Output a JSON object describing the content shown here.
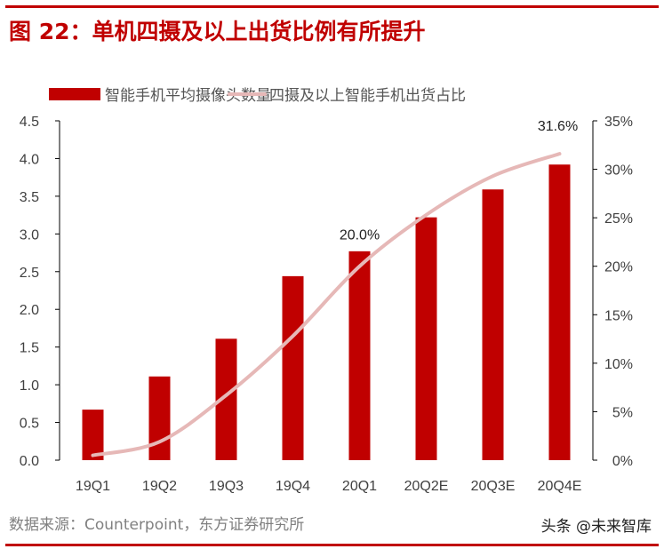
{
  "title": "图 22：单机四摄及以上出货比例有所提升",
  "source": "数据来源：Counterpoint，东方证券研究所",
  "watermark": "头条 @未来智库",
  "chart_data": {
    "type": "bar+line",
    "categories": [
      "19Q1",
      "19Q2",
      "19Q3",
      "19Q4",
      "20Q1",
      "20Q2E",
      "20Q3E",
      "20Q4E"
    ],
    "series": [
      {
        "name": "智能手机平均摄像头数量",
        "type": "bar",
        "axis": "left",
        "color": "#c00000",
        "values": [
          0.67,
          1.11,
          1.61,
          2.44,
          2.77,
          3.22,
          3.59,
          3.92
        ]
      },
      {
        "name": "四摄及以上智能手机出货占比",
        "type": "line",
        "axis": "right",
        "color": "#e6b8b7",
        "values": [
          0.5,
          1.9,
          6.7,
          12.8,
          20.0,
          25.3,
          29.3,
          31.6
        ]
      }
    ],
    "left_axis": {
      "ylim": [
        0,
        4.5
      ],
      "ticks": [
        "0.0",
        "0.5",
        "1.0",
        "1.5",
        "2.0",
        "2.5",
        "3.0",
        "3.5",
        "4.0",
        "4.5"
      ]
    },
    "right_axis": {
      "ylim": [
        0,
        35
      ],
      "ticks": [
        "0%",
        "5%",
        "10%",
        "15%",
        "20%",
        "25%",
        "30%",
        "35%"
      ]
    },
    "annotations": [
      {
        "category": "20Q1",
        "label": "20.0%"
      },
      {
        "category": "20Q4E",
        "label": "31.6%"
      }
    ],
    "legend": "top",
    "grid": false
  }
}
